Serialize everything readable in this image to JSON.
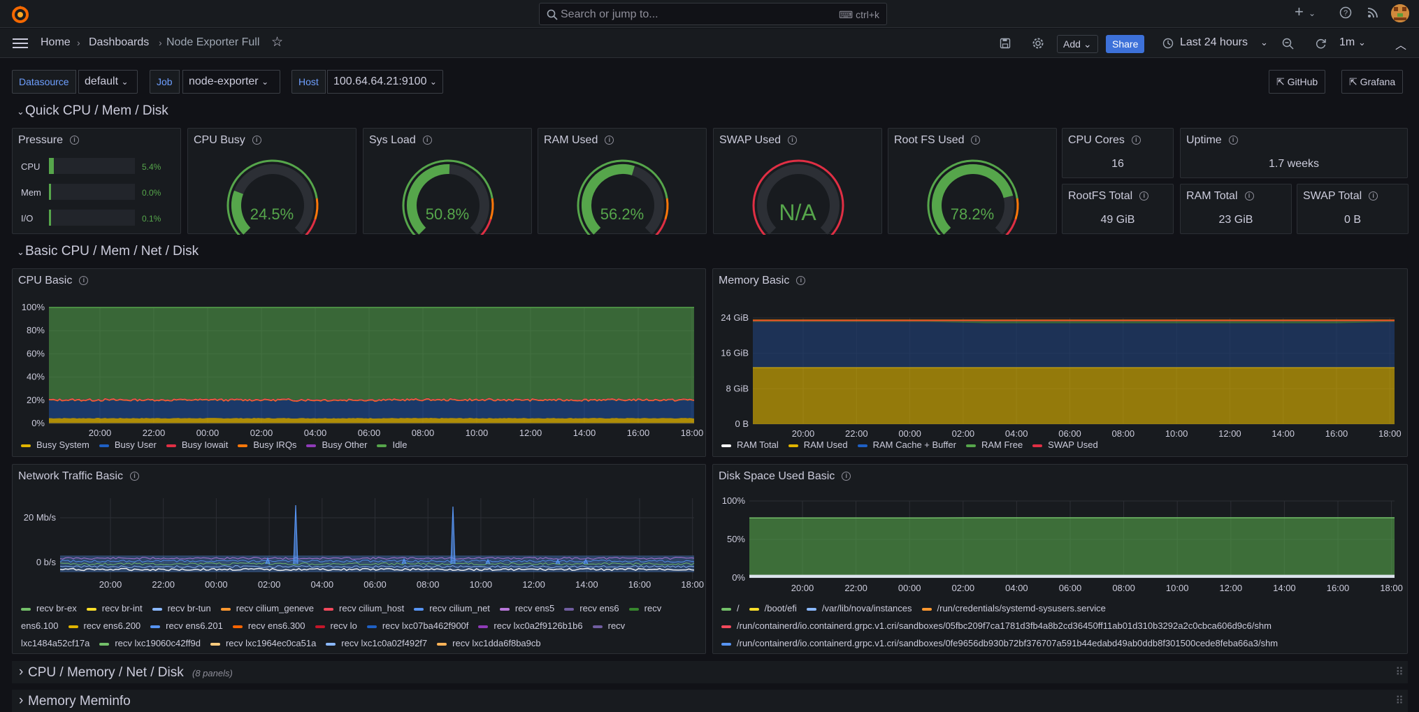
{
  "search": {
    "placeholder": "Search or jump to...",
    "shortcut": "ctrl+k"
  },
  "breadcrumb": {
    "home": "Home",
    "dashboards": "Dashboards",
    "current": "Node Exporter Full"
  },
  "toolbar": {
    "add": "Add",
    "share": "Share",
    "time_range": "Last 24 hours",
    "refresh": "1m"
  },
  "variables": [
    {
      "label": "Datasource",
      "value": "default"
    },
    {
      "label": "Job",
      "value": "node-exporter"
    },
    {
      "label": "Host",
      "value": "100.64.64.21:9100"
    }
  ],
  "links": {
    "github": "GitHub",
    "grafana": "Grafana"
  },
  "rows": {
    "quick": "Quick CPU / Mem / Disk",
    "basic": "Basic CPU / Mem / Net / Disk",
    "cpu_mem_net_disk": "CPU / Memory / Net / Disk",
    "cpu_mem_net_disk_count": "(8 panels)",
    "meminfo": "Memory Meminfo"
  },
  "pressure": {
    "title": "Pressure",
    "items": [
      {
        "label": "CPU",
        "value": "5.4%",
        "fraction": 0.054
      },
      {
        "label": "Mem",
        "value": "0.0%",
        "fraction": 0.0
      },
      {
        "label": "I/O",
        "value": "0.1%",
        "fraction": 0.001
      }
    ]
  },
  "gauges": [
    {
      "title": "CPU Busy",
      "value": "24.5%",
      "fraction": 0.245
    },
    {
      "title": "Sys Load",
      "value": "50.8%",
      "fraction": 0.508
    },
    {
      "title": "RAM Used",
      "value": "56.2%",
      "fraction": 0.562
    },
    {
      "title": "SWAP Used",
      "value": "N/A",
      "fraction": 0
    },
    {
      "title": "Root FS Used",
      "value": "78.2%",
      "fraction": 0.782
    }
  ],
  "stats": {
    "cpu_cores": {
      "title": "CPU Cores",
      "value": "16"
    },
    "uptime": {
      "title": "Uptime",
      "value": "1.7 weeks"
    },
    "rootfs_total": {
      "title": "RootFS Total",
      "value": "49 GiB"
    },
    "ram_total": {
      "title": "RAM Total",
      "value": "23 GiB"
    },
    "swap_total": {
      "title": "SWAP Total",
      "value": "0 B"
    }
  },
  "colors": {
    "green": "#56a64b",
    "yellow": "#e0b400",
    "blue": "#1f60c4",
    "red": "#e02f44",
    "orange": "#ff780a",
    "purple": "#8f3bb8"
  },
  "chart_data": [
    {
      "type": "area",
      "title": "CPU Basic",
      "ylim": [
        0,
        100
      ],
      "yticks": [
        "100%",
        "80%",
        "60%",
        "40%",
        "20%",
        "0%"
      ],
      "xticks": [
        "20:00",
        "22:00",
        "00:00",
        "02:00",
        "04:00",
        "06:00",
        "08:00",
        "10:00",
        "12:00",
        "14:00",
        "16:00",
        "18:00"
      ],
      "series": [
        {
          "name": "Busy System",
          "values": [
            4.5,
            4.5,
            4.6,
            4.5,
            4.4,
            4.5,
            4.6,
            4.5,
            4.5,
            4.6,
            4.5,
            4.5
          ]
        },
        {
          "name": "Busy User",
          "values": [
            15.5,
            15.2,
            15.8,
            15.4,
            15.0,
            15.6,
            15.3,
            15.7,
            15.2,
            15.5,
            15.4,
            15.6
          ]
        },
        {
          "name": "Busy Iowait",
          "values": [
            0.5,
            0.5,
            0.5,
            0.5,
            0.5,
            0.5,
            0.5,
            0.5,
            0.5,
            0.5,
            0.5,
            0.5
          ]
        },
        {
          "name": "Busy IRQs",
          "values": [
            0.3,
            0.3,
            0.3,
            0.3,
            0.3,
            0.3,
            0.3,
            0.3,
            0.3,
            0.3,
            0.3,
            0.3
          ]
        },
        {
          "name": "Busy Other",
          "values": [
            0.2,
            0.2,
            0.2,
            0.2,
            0.2,
            0.2,
            0.2,
            0.2,
            0.2,
            0.2,
            0.2,
            0.2
          ]
        },
        {
          "name": "Idle",
          "values": [
            79,
            79.3,
            78.6,
            79.1,
            79.6,
            78.9,
            79.1,
            78.7,
            79.3,
            78.9,
            79.1,
            78.9
          ]
        }
      ]
    },
    {
      "type": "area",
      "title": "Memory Basic",
      "ylim": [
        0,
        26
      ],
      "yticks": [
        "24 GiB",
        "16 GiB",
        "8 GiB",
        "0 B"
      ],
      "xticks": [
        "20:00",
        "22:00",
        "00:00",
        "02:00",
        "04:00",
        "06:00",
        "08:00",
        "10:00",
        "12:00",
        "14:00",
        "16:00",
        "18:00"
      ],
      "series": [
        {
          "name": "RAM Total",
          "values": [
            23.5,
            23.5,
            23.5,
            23.5,
            23.5,
            23.5,
            23.5,
            23.5,
            23.5,
            23.5,
            23.5,
            23.5
          ]
        },
        {
          "name": "RAM Used",
          "values": [
            12.8,
            12.8,
            12.8,
            12.8,
            12.8,
            12.8,
            12.8,
            12.8,
            12.8,
            12.8,
            12.8,
            12.8
          ]
        },
        {
          "name": "RAM Cache + Buffer",
          "values": [
            10.3,
            10.3,
            10.3,
            10.3,
            10.0,
            10.0,
            10.0,
            10.0,
            10.0,
            10.0,
            10.0,
            10.3
          ]
        },
        {
          "name": "RAM Free",
          "values": [
            0.4,
            0.4,
            0.4,
            0.4,
            0.7,
            0.7,
            0.7,
            0.7,
            0.7,
            0.7,
            0.7,
            0.4
          ]
        },
        {
          "name": "SWAP Used",
          "values": [
            0,
            0,
            0,
            0,
            0,
            0,
            0,
            0,
            0,
            0,
            0,
            0
          ]
        }
      ]
    },
    {
      "type": "line",
      "title": "Network Traffic Basic",
      "yticks": [
        "20 Mb/s",
        "0 b/s"
      ],
      "xticks": [
        "20:00",
        "22:00",
        "00:00",
        "02:00",
        "04:00",
        "06:00",
        "08:00",
        "10:00",
        "12:00",
        "14:00",
        "16:00",
        "18:00"
      ],
      "series": [
        {
          "name": "recv br-ex"
        },
        {
          "name": "recv br-int"
        },
        {
          "name": "recv br-tun"
        },
        {
          "name": "recv cilium_geneve"
        },
        {
          "name": "recv cilium_host"
        },
        {
          "name": "recv cilium_net"
        },
        {
          "name": "recv ens5"
        },
        {
          "name": "recv ens6"
        },
        {
          "name": "recv ens6.100"
        },
        {
          "name": "recv ens6.200"
        },
        {
          "name": "recv ens6.201"
        },
        {
          "name": "recv ens6.300"
        },
        {
          "name": "recv lo"
        },
        {
          "name": "recv lxc07ba462f900f"
        },
        {
          "name": "recv lxc0a2f9126b1b6"
        },
        {
          "name": "recv lxc1484a52cf17a"
        },
        {
          "name": "recv lxc19060c42ff9d"
        },
        {
          "name": "recv lxc1964ec0ca51a"
        },
        {
          "name": "recv lxc1c0a02f492f7"
        },
        {
          "name": "recv lxc1dda6f8ba9cb"
        }
      ]
    },
    {
      "type": "area",
      "title": "Disk Space Used Basic",
      "ylim": [
        0,
        100
      ],
      "yticks": [
        "100%",
        "50%",
        "0%"
      ],
      "xticks": [
        "20:00",
        "22:00",
        "00:00",
        "02:00",
        "04:00",
        "06:00",
        "08:00",
        "10:00",
        "12:00",
        "14:00",
        "16:00",
        "18:00"
      ],
      "series": [
        {
          "name": "/",
          "values": [
            78,
            78,
            78,
            78,
            78.2,
            78.2,
            78.2,
            78.2,
            78.2,
            78.2,
            78.2,
            78.2
          ]
        },
        {
          "name": "/boot/efi",
          "values": [
            2,
            2,
            2,
            2,
            2,
            2,
            2,
            2,
            2,
            2,
            2,
            2
          ]
        },
        {
          "name": "/var/lib/nova/instances",
          "values": [
            3,
            3,
            3,
            3,
            3,
            3,
            3,
            3,
            3,
            3,
            3,
            3
          ]
        },
        {
          "name": "/run/credentials/systemd-sysusers.service",
          "values": [
            0,
            0,
            0,
            0,
            0,
            0,
            0,
            0,
            0,
            0,
            0,
            0
          ]
        },
        {
          "name": "/run/containerd/io.containerd.grpc.v1.cri/sandboxes/05fbc209f7ca1781d3fb4a8b2cd36450ff11ab01d310b3292a2c0cbca606d9c6/shm",
          "values": [
            0,
            0,
            0,
            0,
            0,
            0,
            0,
            0,
            0,
            0,
            0,
            0
          ]
        },
        {
          "name": "/run/containerd/io.containerd.grpc.v1.cri/sandboxes/0fe9656db930b72bf376707a591b44edabd49ab0ddb8f301500cede8feba66a3/shm",
          "values": [
            0,
            0,
            0,
            0,
            0,
            0,
            0,
            0,
            0,
            0,
            0,
            0
          ]
        }
      ]
    }
  ]
}
